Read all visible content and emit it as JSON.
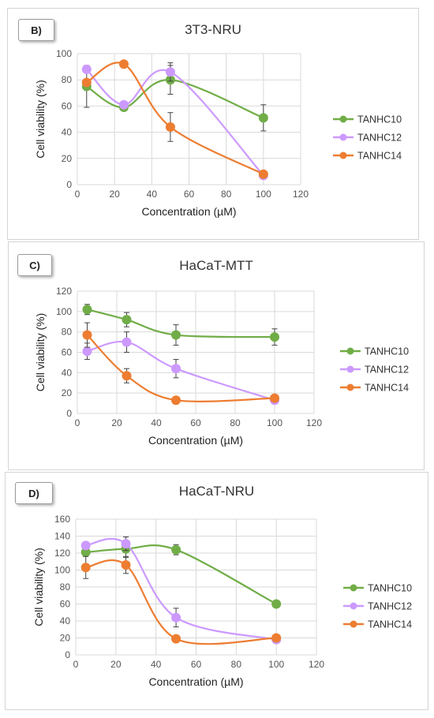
{
  "colors": {
    "TANHC10": "#70ad47",
    "TANHC12": "#cc99ff",
    "TANHC14": "#ed7d31"
  },
  "chart_data": [
    {
      "type": "scatter",
      "panel_label": "B)",
      "title": "3T3-NRU",
      "xlabel": "Concentration (µM)",
      "ylabel": "Cell viability (%)",
      "xlim": [
        0,
        120
      ],
      "ylim": [
        0,
        100
      ],
      "xticks": [
        0,
        20,
        40,
        60,
        80,
        100,
        120
      ],
      "yticks": [
        0,
        20,
        40,
        60,
        80,
        100
      ],
      "grid": true,
      "legend": "right",
      "x": [
        5,
        25,
        50,
        100
      ],
      "series": [
        {
          "name": "TANHC10",
          "values": [
            75,
            59,
            80,
            51
          ],
          "errors": [
            16,
            0,
            11,
            10
          ]
        },
        {
          "name": "TANHC12",
          "values": [
            88,
            61,
            86,
            7
          ],
          "errors": [
            0,
            0,
            7,
            0
          ]
        },
        {
          "name": "TANHC14",
          "values": [
            78,
            92,
            44,
            8
          ],
          "errors": [
            0,
            0,
            11,
            0
          ]
        }
      ]
    },
    {
      "type": "scatter",
      "panel_label": "C)",
      "title": "HaCaT-MTT",
      "xlabel": "Concentration (µM)",
      "ylabel": "Cell viability (%)",
      "xlim": [
        0,
        120
      ],
      "ylim": [
        0,
        120
      ],
      "xticks": [
        0,
        20,
        40,
        60,
        80,
        100,
        120
      ],
      "yticks": [
        0,
        20,
        40,
        60,
        80,
        100,
        120
      ],
      "grid": true,
      "legend": "right",
      "x": [
        5,
        25,
        50,
        100
      ],
      "series": [
        {
          "name": "TANHC10",
          "values": [
            102,
            92,
            77,
            75
          ],
          "errors": [
            5,
            7,
            10,
            8
          ]
        },
        {
          "name": "TANHC12",
          "values": [
            61,
            70,
            44,
            13
          ],
          "errors": [
            8,
            10,
            9,
            0
          ]
        },
        {
          "name": "TANHC14",
          "values": [
            77,
            37,
            13,
            15
          ],
          "errors": [
            12,
            7,
            0,
            0
          ]
        }
      ]
    },
    {
      "type": "scatter",
      "panel_label": "D)",
      "title": "HaCaT-NRU",
      "xlabel": "Concentration (µM)",
      "ylabel": "Cell viability (%)",
      "xlim": [
        0,
        120
      ],
      "ylim": [
        0,
        160
      ],
      "xticks": [
        0,
        20,
        40,
        60,
        80,
        100,
        120
      ],
      "yticks": [
        0,
        20,
        40,
        60,
        80,
        100,
        120,
        140,
        160
      ],
      "grid": true,
      "legend": "right",
      "x": [
        5,
        25,
        50,
        100
      ],
      "series": [
        {
          "name": "TANHC10",
          "values": [
            121,
            125,
            124,
            60
          ],
          "errors": [
            0,
            10,
            6,
            0
          ]
        },
        {
          "name": "TANHC12",
          "values": [
            129,
            131,
            44,
            18
          ],
          "errors": [
            0,
            8,
            11,
            0
          ]
        },
        {
          "name": "TANHC14",
          "values": [
            103,
            106,
            19,
            20
          ],
          "errors": [
            13,
            10,
            0,
            0
          ]
        }
      ]
    }
  ]
}
